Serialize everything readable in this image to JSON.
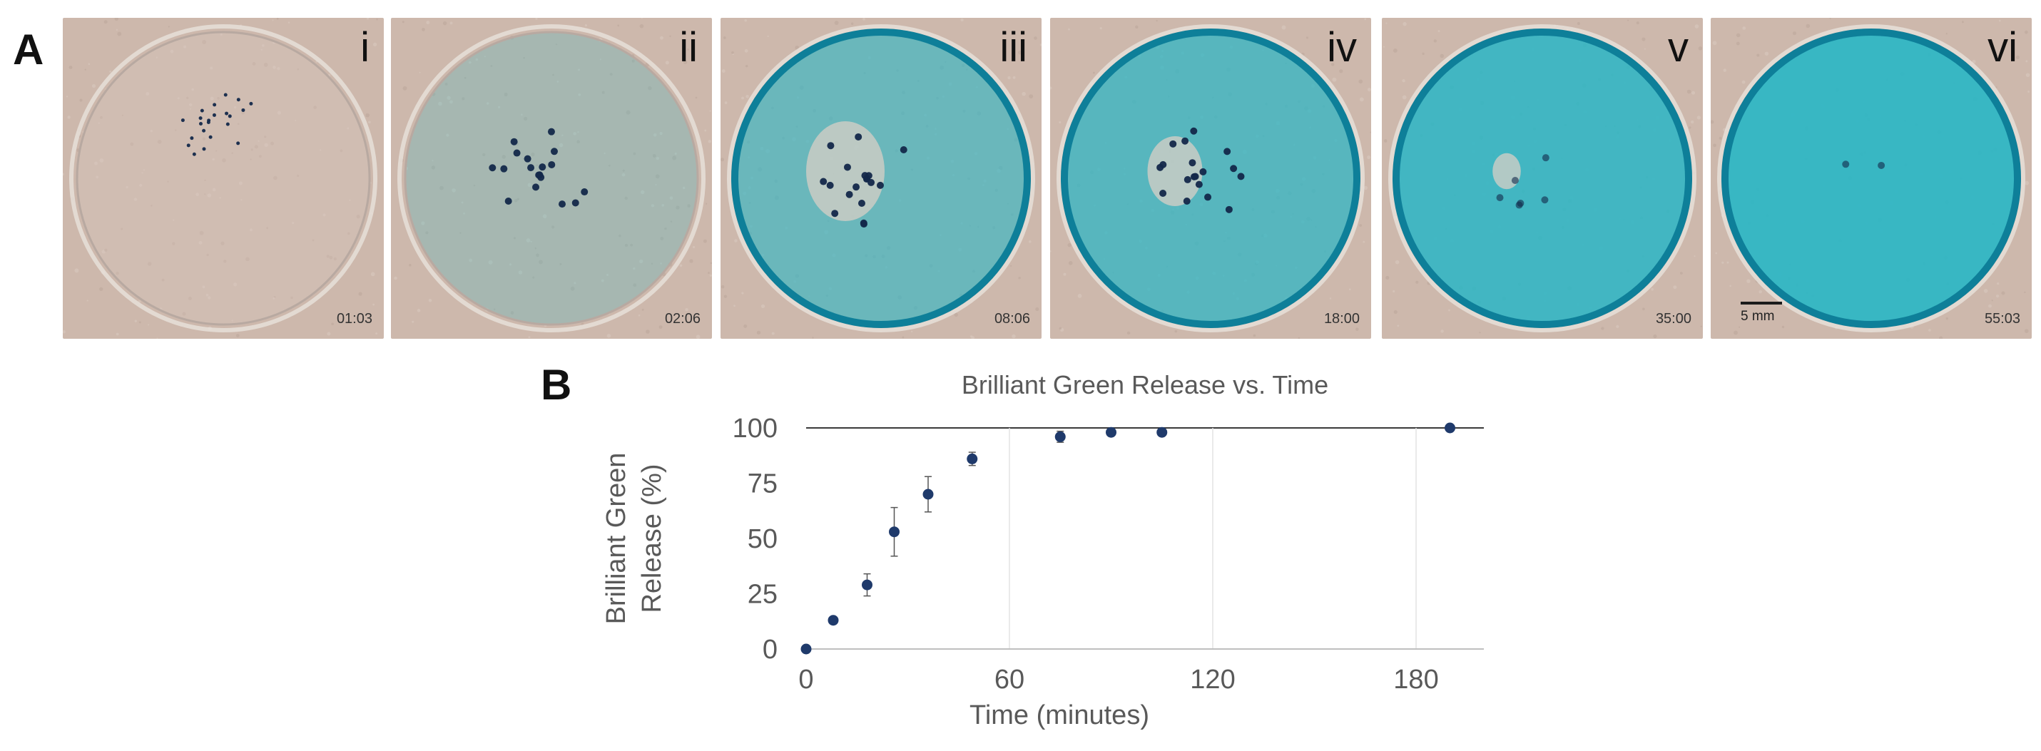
{
  "panel_a_label": "A",
  "panel_b_label": "B",
  "petri_dishes": [
    {
      "label": "i",
      "time": "01:03",
      "dye_coverage": 0.0
    },
    {
      "label": "ii",
      "time": "02:06",
      "dye_coverage": 0.12
    },
    {
      "label": "iii",
      "time": "08:06",
      "dye_coverage": 0.6
    },
    {
      "label": "iv",
      "time": "18:00",
      "dye_coverage": 0.75
    },
    {
      "label": "v",
      "time": "35:00",
      "dye_coverage": 0.92
    },
    {
      "label": "vi",
      "time": "55:03",
      "dye_coverage": 1.0
    }
  ],
  "scale_bar_label": "5 mm",
  "colors": {
    "background_tan": "#cdb8ac",
    "dye_teal": "#2fb6c4",
    "marker": "#1f3a6b",
    "axis_text": "#595959"
  },
  "chart_data": {
    "type": "scatter",
    "title": "Brilliant Green Release vs. Time",
    "xlabel": "Time (minutes)",
    "ylabel_lines": [
      "Brilliant Green",
      "Release (%)"
    ],
    "xlim": [
      0,
      200
    ],
    "ylim": [
      0,
      100
    ],
    "xticks": [
      0,
      60,
      120,
      180
    ],
    "yticks": [
      0,
      25,
      50,
      75,
      100
    ],
    "series": [
      {
        "name": "Brilliant Green Release",
        "x": [
          0,
          8,
          18,
          26,
          36,
          49,
          75,
          90,
          105,
          190
        ],
        "y": [
          0,
          13,
          29,
          53,
          70,
          86,
          96,
          98,
          98,
          100
        ],
        "err": [
          0,
          1.5,
          5,
          11,
          8,
          3,
          2.5,
          0.5,
          0.5,
          0
        ]
      }
    ]
  }
}
